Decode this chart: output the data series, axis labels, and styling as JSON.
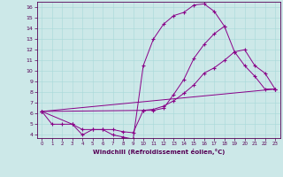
{
  "xlabel": "Windchill (Refroidissement éolien,°C)",
  "background_color": "#cce8e8",
  "line_color": "#880088",
  "xlim": [
    -0.5,
    23.5
  ],
  "ylim": [
    3.7,
    16.5
  ],
  "xticks": [
    0,
    1,
    2,
    3,
    4,
    5,
    6,
    7,
    8,
    9,
    10,
    11,
    12,
    13,
    14,
    15,
    16,
    17,
    18,
    19,
    20,
    21,
    22,
    23
  ],
  "yticks": [
    4,
    5,
    6,
    7,
    8,
    9,
    10,
    11,
    12,
    13,
    14,
    15,
    16
  ],
  "lines": [
    {
      "x": [
        0,
        1,
        2,
        3,
        4,
        5,
        6,
        7,
        8,
        9,
        10,
        11,
        12,
        13,
        14,
        15,
        16,
        17,
        18
      ],
      "y": [
        6.2,
        5.0,
        5.0,
        5.0,
        4.0,
        4.5,
        4.5,
        4.0,
        3.8,
        3.6,
        10.5,
        13.0,
        14.4,
        15.2,
        15.5,
        16.2,
        16.3,
        15.6,
        14.2
      ]
    },
    {
      "x": [
        0,
        10,
        11,
        12,
        13,
        14,
        15,
        16,
        17,
        18,
        19,
        20,
        21,
        22,
        23
      ],
      "y": [
        6.2,
        6.3,
        6.3,
        6.5,
        7.8,
        9.2,
        11.2,
        12.5,
        13.5,
        14.2,
        11.8,
        10.5,
        9.5,
        8.3,
        8.3
      ]
    },
    {
      "x": [
        0,
        23
      ],
      "y": [
        6.2,
        8.3
      ]
    },
    {
      "x": [
        0,
        3,
        4,
        5,
        6,
        7,
        8,
        9,
        10,
        11,
        12,
        13,
        14,
        15,
        16,
        17,
        18,
        19,
        20,
        21,
        22,
        23
      ],
      "y": [
        6.2,
        5.0,
        4.5,
        4.5,
        4.5,
        4.5,
        4.3,
        4.2,
        6.3,
        6.4,
        6.7,
        7.2,
        7.9,
        8.7,
        9.8,
        10.3,
        11.0,
        11.8,
        12.0,
        10.5,
        9.8,
        8.3
      ]
    }
  ]
}
